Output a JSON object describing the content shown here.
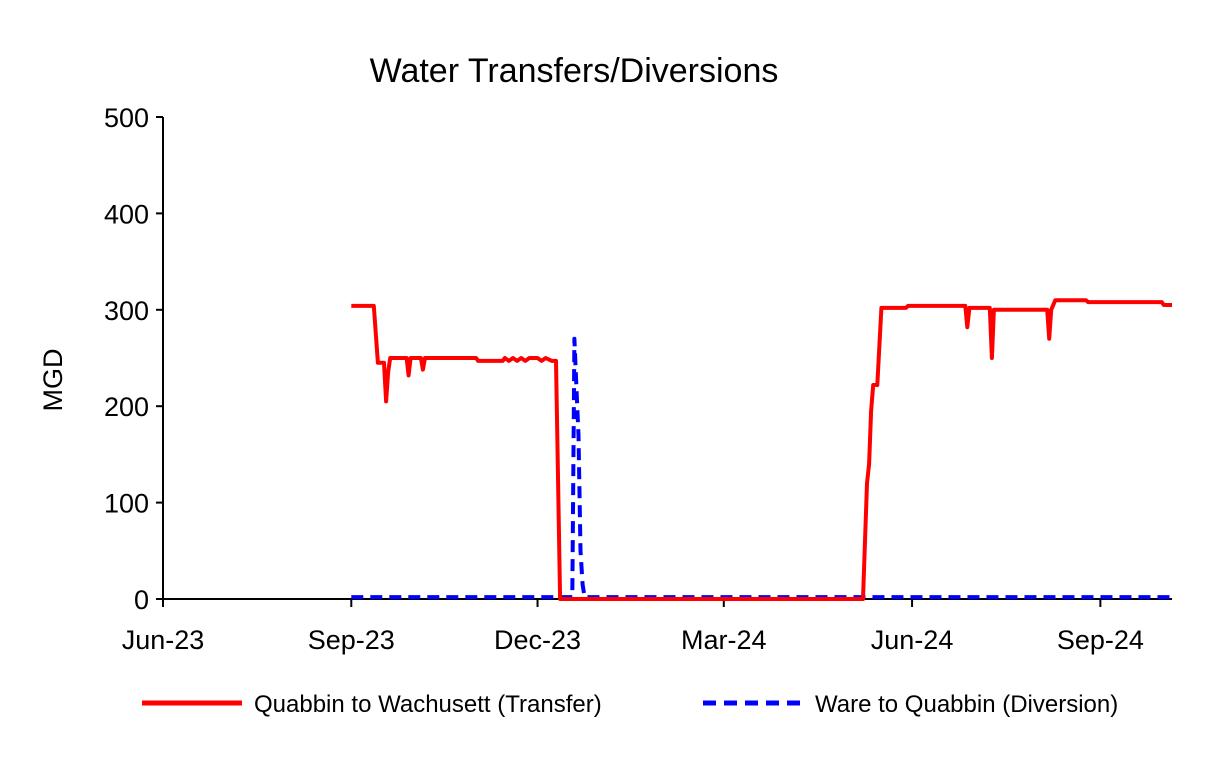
{
  "chart_data": {
    "type": "line",
    "title": "Water Transfers/Diversions",
    "ylabel": "MGD",
    "xlabel": "",
    "ylim": [
      0,
      500
    ],
    "xlim": [
      "2023-06-01",
      "2024-10-06"
    ],
    "yticks": [
      0,
      100,
      200,
      300,
      400,
      500
    ],
    "ytick_labels": [
      "0",
      "100",
      "200",
      "300",
      "400",
      "500"
    ],
    "xticks": [
      "2023-06-01",
      "2023-09-01",
      "2023-12-01",
      "2024-03-01",
      "2024-06-01",
      "2024-09-01"
    ],
    "xtick_labels": [
      "Jun-23",
      "Sep-23",
      "Dec-23",
      "Mar-24",
      "Jun-24",
      "Sep-24"
    ],
    "grid": false,
    "legend_position": "bottom",
    "series": [
      {
        "name": "Quabbin to Wachusett (Transfer)",
        "color": "#ff0000",
        "style": "solid",
        "points": [
          [
            "2023-09-01",
            304
          ],
          [
            "2023-09-12",
            304
          ],
          [
            "2023-09-14",
            245
          ],
          [
            "2023-09-17",
            245
          ],
          [
            "2023-09-18",
            205
          ],
          [
            "2023-09-19",
            235
          ],
          [
            "2023-09-20",
            250
          ],
          [
            "2023-09-28",
            250
          ],
          [
            "2023-09-29",
            232
          ],
          [
            "2023-09-30",
            250
          ],
          [
            "2023-10-05",
            250
          ],
          [
            "2023-10-06",
            238
          ],
          [
            "2023-10-07",
            250
          ],
          [
            "2023-11-01",
            250
          ],
          [
            "2023-11-02",
            247
          ],
          [
            "2023-11-14",
            247
          ],
          [
            "2023-11-15",
            250
          ],
          [
            "2023-11-17",
            247
          ],
          [
            "2023-11-19",
            250
          ],
          [
            "2023-11-21",
            247
          ],
          [
            "2023-11-23",
            250
          ],
          [
            "2023-11-25",
            247
          ],
          [
            "2023-11-27",
            250
          ],
          [
            "2023-12-01",
            250
          ],
          [
            "2023-12-03",
            247
          ],
          [
            "2023-12-05",
            250
          ],
          [
            "2023-12-08",
            247
          ],
          [
            "2023-12-10",
            247
          ],
          [
            "2023-12-12",
            0
          ],
          [
            "2024-05-08",
            0
          ],
          [
            "2024-05-10",
            120
          ],
          [
            "2024-05-11",
            140
          ],
          [
            "2024-05-12",
            195
          ],
          [
            "2024-05-13",
            222
          ],
          [
            "2024-05-15",
            222
          ],
          [
            "2024-05-17",
            302
          ],
          [
            "2024-05-29",
            302
          ],
          [
            "2024-05-30",
            304
          ],
          [
            "2024-06-27",
            304
          ],
          [
            "2024-06-28",
            282
          ],
          [
            "2024-06-29",
            302
          ],
          [
            "2024-07-09",
            302
          ],
          [
            "2024-07-10",
            250
          ],
          [
            "2024-07-11",
            300
          ],
          [
            "2024-08-06",
            300
          ],
          [
            "2024-08-07",
            270
          ],
          [
            "2024-08-08",
            300
          ],
          [
            "2024-08-10",
            310
          ],
          [
            "2024-08-25",
            310
          ],
          [
            "2024-08-26",
            308
          ],
          [
            "2024-10-01",
            308
          ],
          [
            "2024-10-02",
            305
          ],
          [
            "2024-10-06",
            305
          ]
        ]
      },
      {
        "name": "Ware to Quabbin (Diversion)",
        "color": "#0000ff",
        "style": "dashed",
        "points": [
          [
            "2023-09-01",
            2
          ],
          [
            "2023-12-18",
            2
          ],
          [
            "2023-12-19",
            270
          ],
          [
            "2023-12-20",
            220
          ],
          [
            "2023-12-21",
            170
          ],
          [
            "2023-12-22",
            50
          ],
          [
            "2023-12-23",
            15
          ],
          [
            "2023-12-24",
            2
          ],
          [
            "2024-10-06",
            2
          ]
        ]
      }
    ]
  }
}
